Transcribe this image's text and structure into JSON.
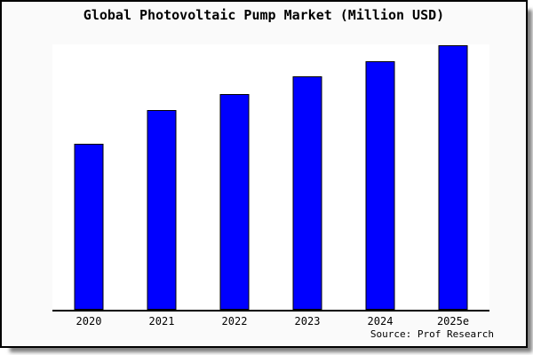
{
  "title": "Global Photovoltaic Pump Market (Million USD)",
  "source_note": "Source: Prof Research",
  "colors": {
    "bar_fill": "#0000ff",
    "bar_edge": "#000000",
    "axis": "#000000",
    "card_background": "#fafafa",
    "plot_background": "#ffffff",
    "frame_border": "#000000"
  },
  "chart_data": {
    "type": "bar",
    "title": "Global Photovoltaic Pump Market (Million USD)",
    "categories": [
      "2020",
      "2021",
      "2022",
      "2023",
      "2024",
      "2025e"
    ],
    "values": [
      62.8,
      75.3,
      81.6,
      88.0,
      93.8,
      100
    ],
    "values_scale": "relative units estimated from bar heights; no y-axis tick labels shown (2025e = 100)",
    "xlabel": "",
    "ylabel": "",
    "ylim": [
      0,
      100.2
    ],
    "grid": false,
    "legend": false,
    "y_axis_visible": false,
    "x_axis_visible": true,
    "annotations": [
      "Source: Prof Research"
    ]
  }
}
